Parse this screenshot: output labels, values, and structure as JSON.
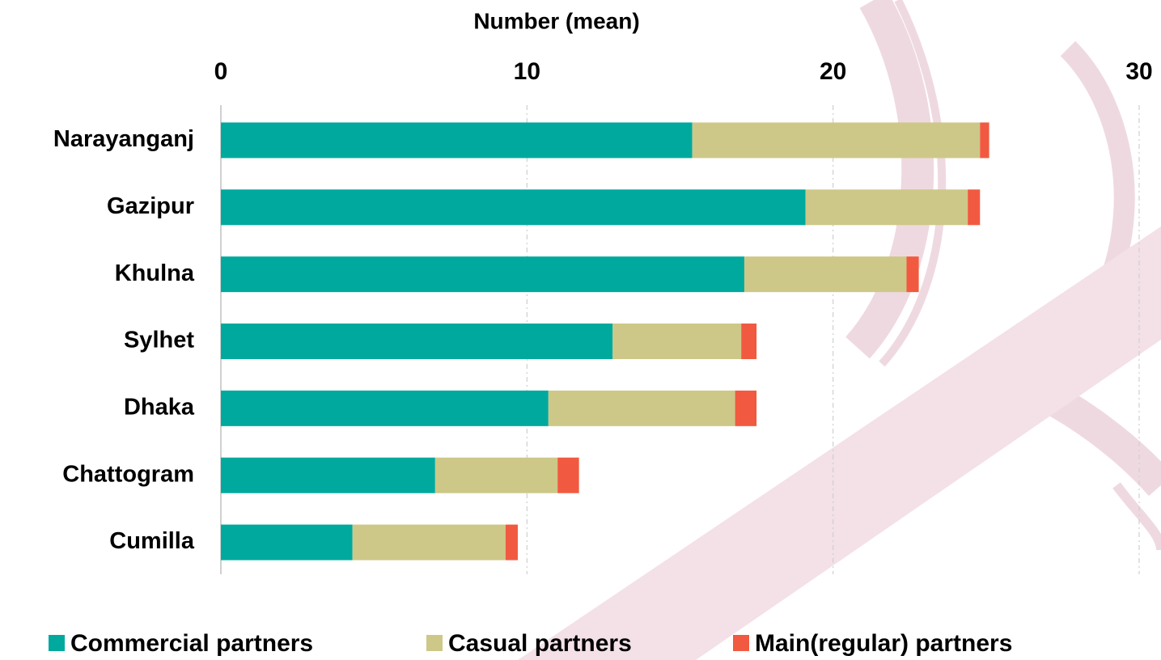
{
  "chart_data": {
    "type": "stacked-bar-horizontal",
    "x_label": "Number (mean)",
    "categories": [
      "Narayanganj",
      "Gazipur",
      "Khulna",
      "Sylhet",
      "Dhaka",
      "Chattogram",
      "Cumilla"
    ],
    "series": [
      {
        "name": "Commercial partners",
        "color": "#00a99d",
        "values": [
          15.4,
          19.1,
          17.1,
          12.8,
          10.7,
          7.0,
          4.3
        ]
      },
      {
        "name": "Casual partners",
        "color": "#cdc888",
        "values": [
          9.4,
          5.3,
          5.3,
          4.2,
          6.1,
          4.0,
          5.0
        ]
      },
      {
        "name": "Main(regular) partners",
        "color": "#f15a40",
        "values": [
          0.3,
          0.4,
          0.4,
          0.5,
          0.7,
          0.7,
          0.4
        ]
      }
    ],
    "xlim": [
      0,
      30
    ],
    "xticks": [
      0,
      10,
      20,
      30
    ],
    "grid": true
  }
}
